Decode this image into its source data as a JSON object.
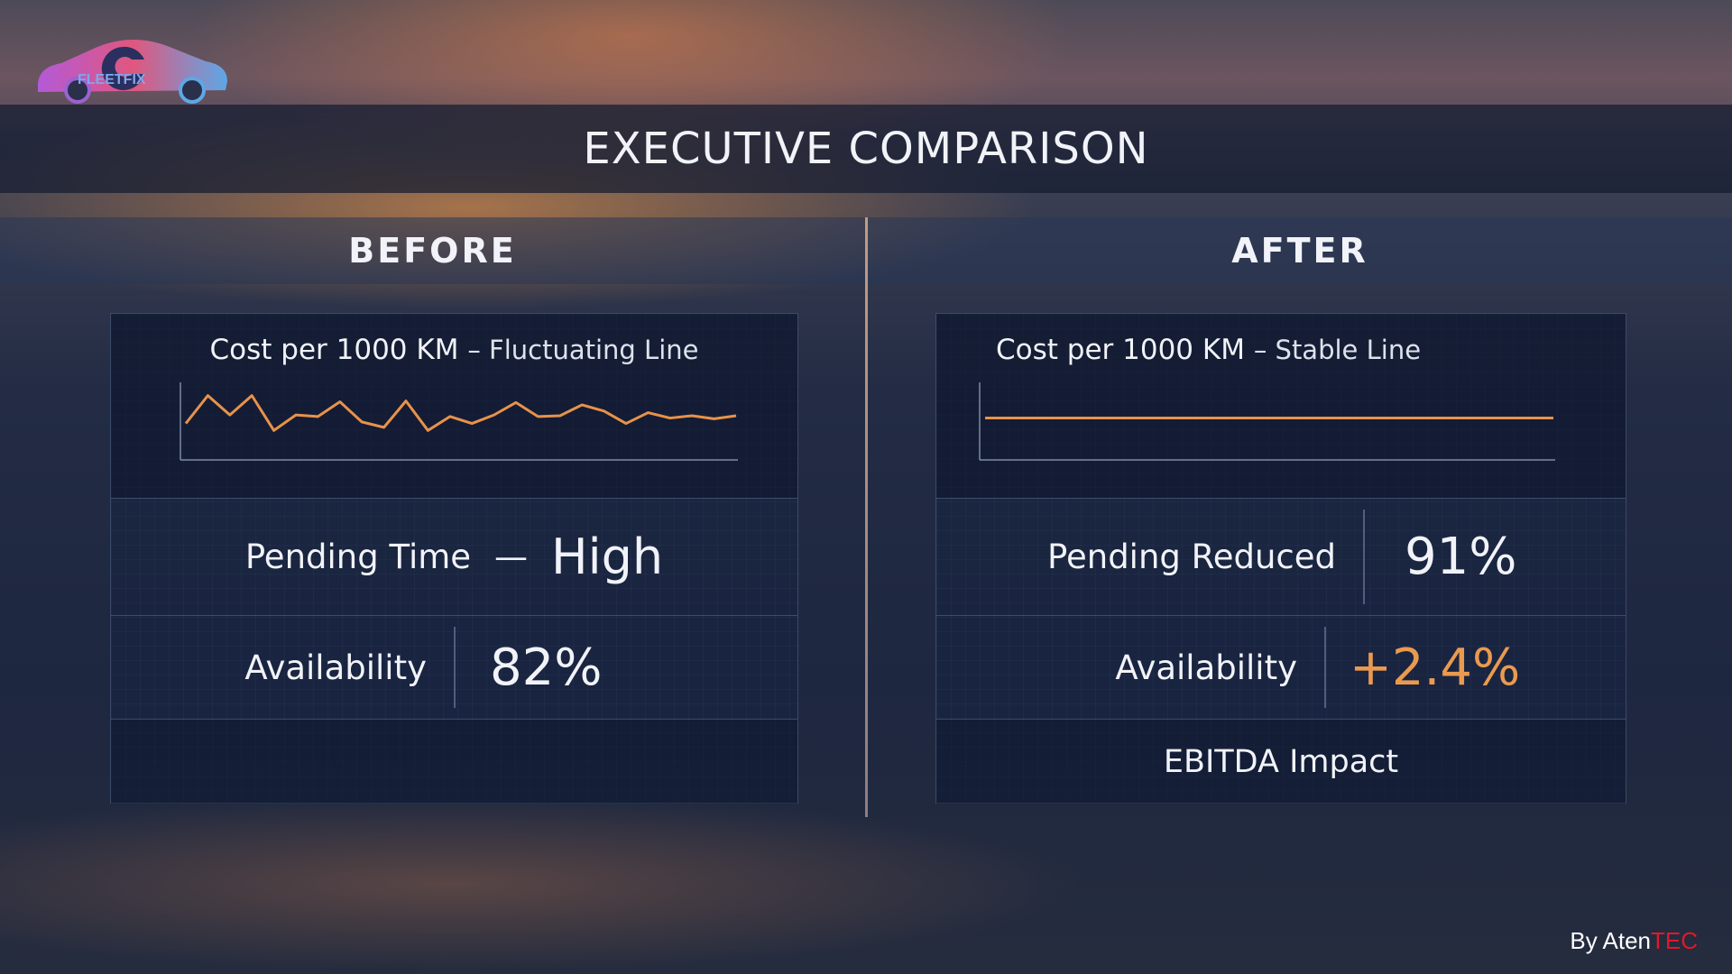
{
  "logo": {
    "text": "FLEETFIX"
  },
  "title": "EXECUTIVE COMPARISON",
  "before": {
    "heading": "BEFORE",
    "chart": {
      "type": "line",
      "title": "Cost per 1000 KM",
      "subtitle": "– Fluctuating Line",
      "color": "#e8924a",
      "ylim": [
        0,
        100
      ],
      "values": [
        47,
        83,
        58,
        83,
        38,
        58,
        56,
        75,
        49,
        42,
        76,
        38,
        56,
        47,
        58,
        74,
        56,
        57,
        71,
        63,
        47,
        61,
        54,
        57,
        53,
        57
      ]
    },
    "pending": {
      "label": "Pending Time",
      "dash": "—",
      "value": "High"
    },
    "availability": {
      "label": "Availability",
      "value": "82%"
    }
  },
  "after": {
    "heading": "AFTER",
    "chart": {
      "type": "line",
      "title": "Cost per 1000 KM",
      "subtitle": "– Stable Line",
      "color": "#e8924a",
      "ylim": [
        0,
        100
      ],
      "values": [
        54,
        54,
        54,
        54,
        54,
        54,
        54,
        54,
        54,
        54,
        54,
        54
      ]
    },
    "pending": {
      "label": "Pending Reduced",
      "value": "91%"
    },
    "availability": {
      "label": "Availability",
      "value": "+2.4%"
    },
    "ebitda": "EBITDA Impact"
  },
  "footer": {
    "prefix": "By Aten",
    "accent": "TEC"
  }
}
